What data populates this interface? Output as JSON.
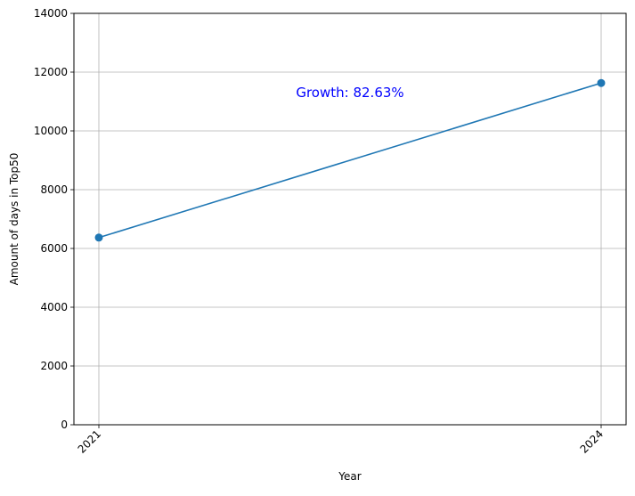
{
  "chart_data": {
    "type": "line",
    "title": "",
    "xlabel": "Year",
    "ylabel": "Amount of days in Top50",
    "x": [
      "2021",
      "2024"
    ],
    "series": [
      {
        "values": [
          6370,
          11630
        ],
        "color": "#1f77b4",
        "marker": "circle"
      }
    ],
    "ylim": [
      0,
      14000
    ],
    "yticks": [
      0,
      2000,
      4000,
      6000,
      8000,
      10000,
      12000,
      14000
    ],
    "xtick_rotation": -45,
    "grid": true,
    "annotation": {
      "text": "Growth: 82.63%",
      "color": "#0000ff",
      "x_position": 0.5,
      "y_value": 11000
    }
  }
}
